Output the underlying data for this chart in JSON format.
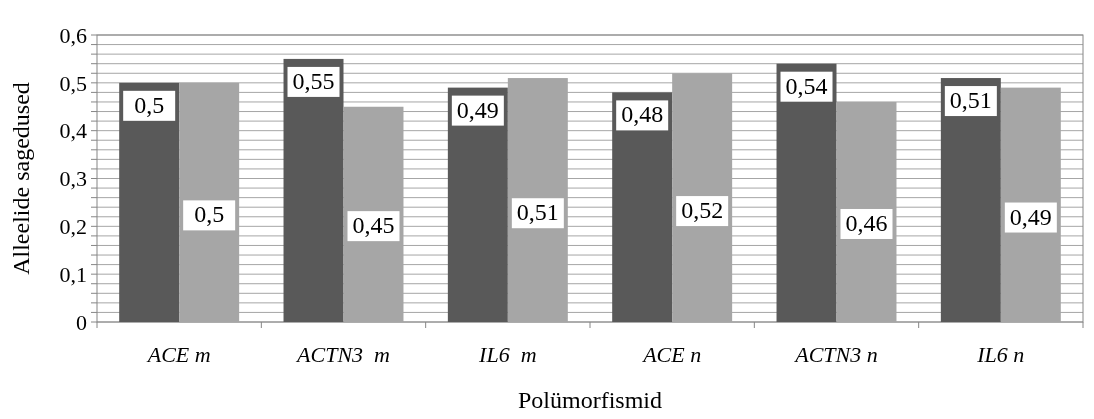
{
  "chart_data": {
    "type": "bar",
    "xlabel": "Polümorfismid",
    "ylabel": "Alleelide sagedused",
    "categories": [
      "ACE m",
      "ACTN3  m",
      "IL6  m",
      "ACE n",
      "ACTN3 n",
      "IL6 n"
    ],
    "series": [
      {
        "color": "#595959",
        "values": [
          0.5,
          0.55,
          0.49,
          0.48,
          0.54,
          0.51
        ],
        "value_labels": [
          "0,5",
          "0,55",
          "0,49",
          "0,48",
          "0,54",
          "0,51"
        ]
      },
      {
        "color": "#a6a6a6",
        "values": [
          0.5,
          0.45,
          0.51,
          0.52,
          0.46,
          0.49
        ],
        "value_labels": [
          "0,5",
          "0,45",
          "0,51",
          "0,52",
          "0,46",
          "0,49"
        ]
      }
    ],
    "ylim": [
      0,
      0.6
    ],
    "yticks": [
      {
        "value": 0,
        "label": "0"
      },
      {
        "value": 0.02,
        "label": null
      },
      {
        "value": 0.04,
        "label": null
      },
      {
        "value": 0.06,
        "label": null
      },
      {
        "value": 0.08,
        "label": null
      },
      {
        "value": 0.1,
        "label": "0,1"
      },
      {
        "value": 0.12,
        "label": null
      },
      {
        "value": 0.14,
        "label": null
      },
      {
        "value": 0.16,
        "label": null
      },
      {
        "value": 0.18,
        "label": null
      },
      {
        "value": 0.2,
        "label": "0,2"
      },
      {
        "value": 0.22,
        "label": null
      },
      {
        "value": 0.24,
        "label": null
      },
      {
        "value": 0.26,
        "label": null
      },
      {
        "value": 0.28,
        "label": null
      },
      {
        "value": 0.3,
        "label": "0,3"
      },
      {
        "value": 0.32,
        "label": null
      },
      {
        "value": 0.34,
        "label": null
      },
      {
        "value": 0.36,
        "label": null
      },
      {
        "value": 0.38,
        "label": null
      },
      {
        "value": 0.4,
        "label": "0,4"
      },
      {
        "value": 0.42,
        "label": null
      },
      {
        "value": 0.44,
        "label": null
      },
      {
        "value": 0.46,
        "label": null
      },
      {
        "value": 0.48,
        "label": null
      },
      {
        "value": 0.5,
        "label": "0,5"
      },
      {
        "value": 0.52,
        "label": null
      },
      {
        "value": 0.54,
        "label": null
      },
      {
        "value": 0.56,
        "label": null
      },
      {
        "value": 0.58,
        "label": null
      },
      {
        "value": 0.6,
        "label": "0,6"
      }
    ],
    "grid": "y"
  }
}
